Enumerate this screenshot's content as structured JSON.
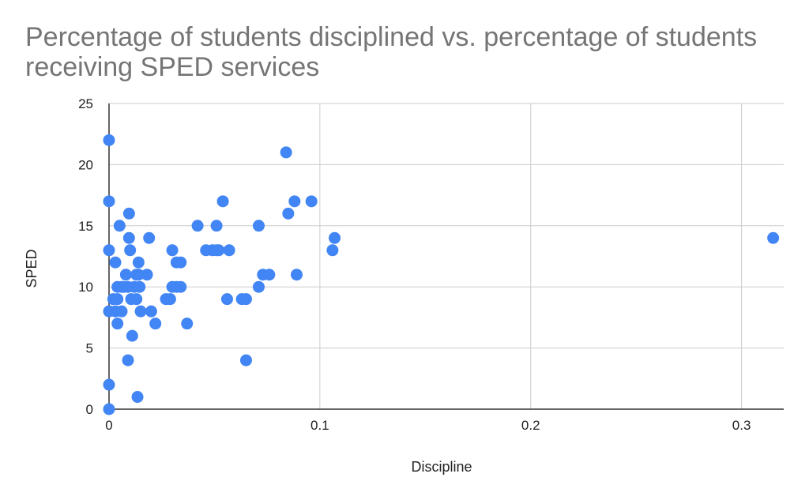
{
  "chart_data": {
    "type": "scatter",
    "title": "Percentage of students disciplined vs. percentage of students receiving SPED services",
    "xlabel": "Discipline",
    "ylabel": "SPED",
    "xlim": [
      0,
      0.32
    ],
    "ylim": [
      0,
      25
    ],
    "xticks": [
      0,
      0.1,
      0.2,
      0.3
    ],
    "xtick_labels": [
      "0",
      "0.1",
      "0.2",
      "0.3"
    ],
    "yticks": [
      0,
      5,
      10,
      15,
      20,
      25
    ],
    "ytick_labels": [
      "0",
      "5",
      "10",
      "15",
      "20",
      "25"
    ],
    "grid": true,
    "legend": "none",
    "point_color": "#4285f4",
    "points": [
      [
        0,
        22
      ],
      [
        0,
        17
      ],
      [
        0,
        13
      ],
      [
        0,
        8
      ],
      [
        0,
        2
      ],
      [
        0,
        0
      ],
      [
        0.002,
        9
      ],
      [
        0.003,
        12
      ],
      [
        0.003,
        8
      ],
      [
        0.004,
        10
      ],
      [
        0.004,
        9
      ],
      [
        0.004,
        7
      ],
      [
        0.005,
        15
      ],
      [
        0.006,
        10
      ],
      [
        0.006,
        8
      ],
      [
        0.007,
        10
      ],
      [
        0.008,
        11
      ],
      [
        0.009,
        10
      ],
      [
        0.009,
        4
      ],
      [
        0.0095,
        16
      ],
      [
        0.0095,
        14
      ],
      [
        0.01,
        13
      ],
      [
        0.0105,
        9
      ],
      [
        0.011,
        6
      ],
      [
        0.012,
        10
      ],
      [
        0.013,
        11
      ],
      [
        0.013,
        9
      ],
      [
        0.0135,
        1
      ],
      [
        0.014,
        12
      ],
      [
        0.014,
        11
      ],
      [
        0.0145,
        10
      ],
      [
        0.015,
        8
      ],
      [
        0.018,
        11
      ],
      [
        0.019,
        14
      ],
      [
        0.02,
        8
      ],
      [
        0.022,
        7
      ],
      [
        0.027,
        9
      ],
      [
        0.029,
        9
      ],
      [
        0.03,
        13
      ],
      [
        0.03,
        10
      ],
      [
        0.032,
        12
      ],
      [
        0.032,
        10
      ],
      [
        0.034,
        12
      ],
      [
        0.034,
        10
      ],
      [
        0.037,
        7
      ],
      [
        0.042,
        15
      ],
      [
        0.046,
        13
      ],
      [
        0.049,
        13
      ],
      [
        0.051,
        15
      ],
      [
        0.051,
        13
      ],
      [
        0.052,
        13
      ],
      [
        0.054,
        17
      ],
      [
        0.056,
        9
      ],
      [
        0.057,
        13
      ],
      [
        0.063,
        9
      ],
      [
        0.065,
        9
      ],
      [
        0.065,
        4
      ],
      [
        0.071,
        10
      ],
      [
        0.071,
        15
      ],
      [
        0.073,
        11
      ],
      [
        0.076,
        11
      ],
      [
        0.084,
        21
      ],
      [
        0.085,
        16
      ],
      [
        0.088,
        17
      ],
      [
        0.089,
        11
      ],
      [
        0.096,
        17
      ],
      [
        0.106,
        13
      ],
      [
        0.107,
        14
      ],
      [
        0.315,
        14
      ]
    ]
  }
}
